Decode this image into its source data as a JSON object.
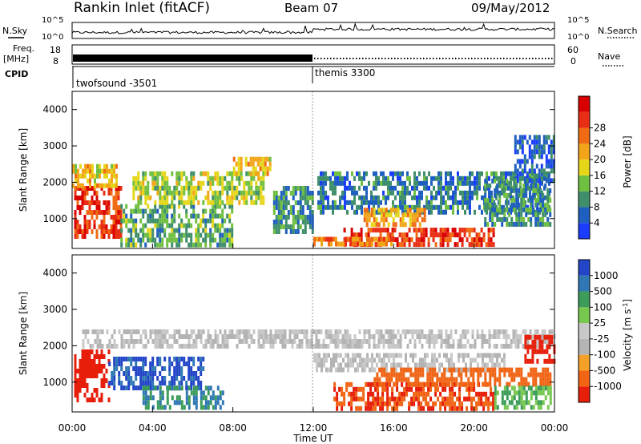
{
  "header": {
    "station": "Rankin Inlet (fitACF)",
    "beam": "Beam 07",
    "date": "09/May/2012"
  },
  "noise_panel": {
    "left_label": "N.Sky",
    "right_label": "N.Search",
    "left_ticks": [
      "10^5",
      "10^0"
    ],
    "right_ticks": [
      "10^5",
      "10^0"
    ]
  },
  "freq_panel": {
    "left_label_line1": "Freq.",
    "left_label_line2": "[MHz]",
    "right_label": "Nave",
    "left_ticks": [
      "18",
      "8"
    ],
    "right_ticks": [
      "60",
      "0"
    ]
  },
  "cpid_panel": {
    "label": "CPID",
    "segments": [
      {
        "start_hour": 0,
        "name": "twofsound",
        "id": "-3501"
      },
      {
        "start_hour": 12.0,
        "name": "themis",
        "id": "3300"
      }
    ]
  },
  "x_axis": {
    "label": "Time UT",
    "ticks": [
      "00:00",
      "04:00",
      "08:00",
      "12:00",
      "16:00",
      "20:00",
      "00:00"
    ]
  },
  "chart_data": [
    {
      "type": "heatmap",
      "title": "",
      "xlabel": "Time UT",
      "ylabel": "Slant Range [km]",
      "xlim": [
        0,
        24
      ],
      "ylim": [
        180,
        4500
      ],
      "y_ticks": [
        1000,
        2000,
        3000,
        4000
      ],
      "colorbar": {
        "label": "Power [dB]",
        "ticks": [
          "4",
          "8",
          "12",
          "16",
          "20",
          "24",
          "28"
        ],
        "colors": [
          "#1a3cff",
          "#1f5fbf",
          "#3f8f6a",
          "#6fbf40",
          "#e6d619",
          "#f2a519",
          "#f06b14",
          "#e82e14",
          "#d80000"
        ]
      },
      "regions": [
        {
          "t0": 0.1,
          "t1": 2.4,
          "r0": 500,
          "r1": 1900,
          "level": 28
        },
        {
          "t0": 0.0,
          "t1": 2.2,
          "r0": 1900,
          "r1": 2500,
          "level": 18
        },
        {
          "t0": 2.4,
          "t1": 8.0,
          "r0": 300,
          "r1": 1400,
          "level": 10
        },
        {
          "t0": 3.0,
          "t1": 9.5,
          "r0": 1500,
          "r1": 2300,
          "level": 14
        },
        {
          "t0": 8.0,
          "t1": 9.8,
          "r0": 2300,
          "r1": 2700,
          "level": 18
        },
        {
          "t0": 10.0,
          "t1": 12.0,
          "r0": 600,
          "r1": 1900,
          "level": 8
        },
        {
          "t0": 12.2,
          "t1": 23.8,
          "r0": 1200,
          "r1": 2300,
          "level": 6
        },
        {
          "t0": 13.5,
          "t1": 21.0,
          "r0": 300,
          "r1": 750,
          "level": 28
        },
        {
          "t0": 14.5,
          "t1": 17.5,
          "r0": 800,
          "r1": 1300,
          "level": 20
        },
        {
          "t0": 12.0,
          "t1": 16.0,
          "r0": 250,
          "r1": 500,
          "level": 24
        },
        {
          "t0": 20.5,
          "t1": 23.8,
          "r0": 900,
          "r1": 2100,
          "level": 8
        },
        {
          "t0": 22.0,
          "t1": 24.0,
          "r0": 2100,
          "r1": 3300,
          "level": 4
        }
      ]
    },
    {
      "type": "heatmap",
      "title": "",
      "xlabel": "Time UT",
      "ylabel": "Slant Range [km]",
      "xlim": [
        0,
        24
      ],
      "ylim": [
        180,
        4500
      ],
      "y_ticks": [
        1000,
        2000,
        3000,
        4000
      ],
      "colorbar": {
        "label": "Velocity [m s^-1]",
        "ticks": [
          "1000",
          "500",
          "100",
          "25",
          "-25",
          "-100",
          "-500",
          "-1000"
        ],
        "colors": [
          "#2346c8",
          "#2f78b4",
          "#3c9c5a",
          "#78c850",
          "#c8c8c8",
          "#b4b4b4",
          "#f5a028",
          "#f06414",
          "#e61e0a"
        ]
      },
      "regions": [
        {
          "t0": 0.1,
          "t1": 1.8,
          "r0": 500,
          "r1": 1900,
          "level": -500
        },
        {
          "t0": 1.8,
          "t1": 6.5,
          "r0": 900,
          "r1": 1700,
          "level": 900
        },
        {
          "t0": 3.5,
          "t1": 7.5,
          "r0": 250,
          "r1": 900,
          "level": 300
        },
        {
          "t0": 0.5,
          "t1": 24.0,
          "r0": 2050,
          "r1": 2450,
          "level": 0
        },
        {
          "t0": 12.0,
          "t1": 21.5,
          "r0": 1300,
          "r1": 1800,
          "level": 0
        },
        {
          "t0": 13.0,
          "t1": 21.0,
          "r0": 300,
          "r1": 1000,
          "level": -300
        },
        {
          "t0": 15.0,
          "t1": 23.8,
          "r0": 1000,
          "r1": 1400,
          "level": -150
        },
        {
          "t0": 21.0,
          "t1": 23.8,
          "r0": 250,
          "r1": 900,
          "level": 60
        },
        {
          "t0": 22.5,
          "t1": 24.0,
          "r0": 1600,
          "r1": 2300,
          "level": -500
        }
      ]
    }
  ]
}
